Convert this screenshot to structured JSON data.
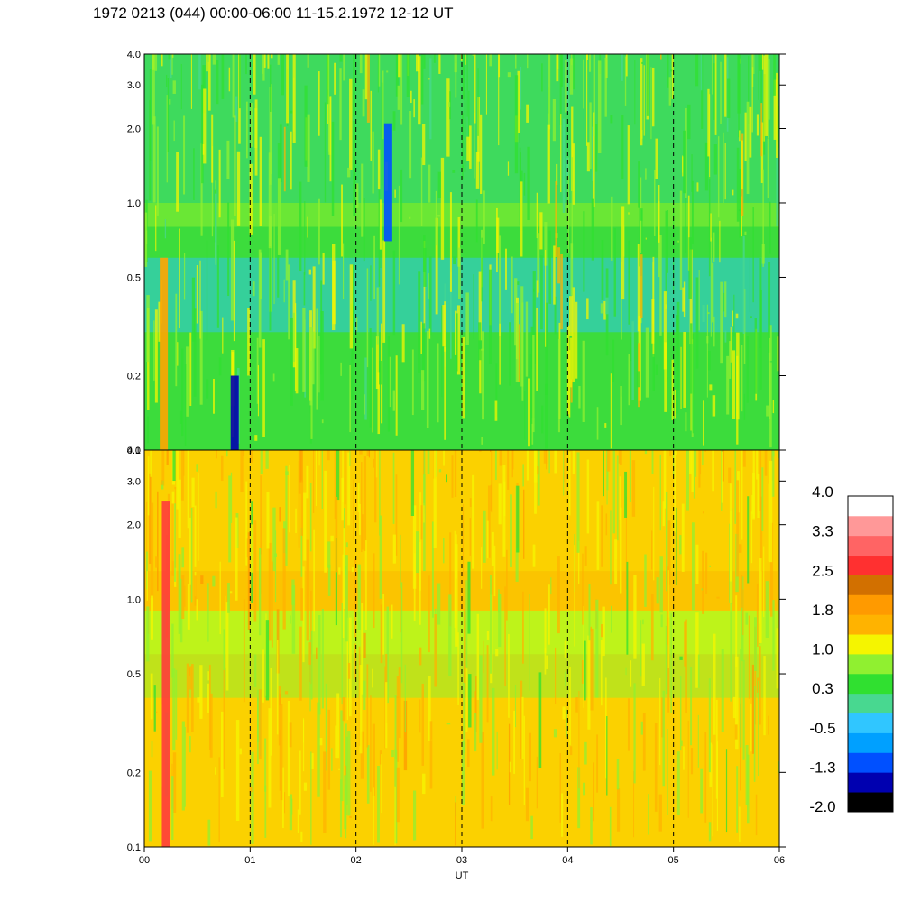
{
  "header": {
    "title": "1972 0213 (044) 00:00-06:00 11-15.2.1972  12-12 UT"
  },
  "chart_data": {
    "type": "heatmap",
    "title": "1972 0213 (044) 00:00-06:00 11-15.2.1972  12-12 UT",
    "xlabel": "UT",
    "x_ticks": [
      "00",
      "01",
      "02",
      "03",
      "04",
      "05",
      "06"
    ],
    "x_range": [
      0,
      6
    ],
    "y_scale": "log",
    "panels": [
      {
        "name": "top",
        "y_range": [
          0.1,
          4.0
        ],
        "y_ticks": [
          {
            "value": 4.0,
            "label": "4.0"
          },
          {
            "value": 3.0,
            "label": "3.0"
          },
          {
            "value": 2.0,
            "label": "2.0"
          },
          {
            "value": 1.0,
            "label": "1.0"
          },
          {
            "value": 0.5,
            "label": "0.5"
          },
          {
            "value": 0.2,
            "label": "0.2"
          },
          {
            "value": 0.1,
            "label": "0.1"
          }
        ],
        "dominant_level": 0.3,
        "background_color": "#3cdc3c",
        "bands": [
          {
            "y_low": 0.1,
            "y_high": 0.8,
            "color": "#3cdc3c"
          },
          {
            "y_low": 0.3,
            "y_high": 0.6,
            "color": "#30c6e8"
          },
          {
            "y_low": 0.8,
            "y_high": 1.0,
            "color": "#90f030"
          },
          {
            "y_low": 1.0,
            "y_high": 4.0,
            "color": "#40d878"
          }
        ],
        "hot_streaks": [
          {
            "x": 0.18,
            "y_low": 0.1,
            "y_high": 0.6,
            "color": "#ffa500"
          },
          {
            "x": 0.85,
            "y_low": 0.1,
            "y_high": 0.2,
            "color": "#0000b0"
          },
          {
            "x": 2.3,
            "y_low": 0.7,
            "y_high": 2.1,
            "color": "#0050ff"
          }
        ]
      },
      {
        "name": "bottom",
        "y_range": [
          0.1,
          4.0
        ],
        "y_ticks": [
          {
            "value": 4.0,
            "label": "4.0"
          },
          {
            "value": 3.0,
            "label": "3.0"
          },
          {
            "value": 2.0,
            "label": "2.0"
          },
          {
            "value": 1.0,
            "label": "1.0"
          },
          {
            "value": 0.5,
            "label": "0.5"
          },
          {
            "value": 0.2,
            "label": "0.2"
          },
          {
            "value": 0.1,
            "label": "0.1"
          }
        ],
        "dominant_level": 1.0,
        "background_color": "#f5f500",
        "bands": [
          {
            "y_low": 0.1,
            "y_high": 0.6,
            "color": "#ffb300"
          },
          {
            "y_low": 0.4,
            "y_high": 0.9,
            "color": "#90f030"
          },
          {
            "y_low": 0.9,
            "y_high": 1.3,
            "color": "#ff9a00"
          },
          {
            "y_low": 1.3,
            "y_high": 4.0,
            "color": "#ffb300"
          }
        ],
        "hot_streaks": [
          {
            "x": 0.2,
            "y_low": 0.1,
            "y_high": 2.5,
            "color": "#ff3b3b"
          }
        ]
      }
    ],
    "colorbar": {
      "levels": [
        {
          "color": "#000000"
        },
        {
          "color": "#0000b0"
        },
        {
          "color": "#0050ff"
        },
        {
          "color": "#00a0ff"
        },
        {
          "color": "#30c6ff"
        },
        {
          "color": "#48d890"
        },
        {
          "color": "#30e030"
        },
        {
          "color": "#90f030"
        },
        {
          "color": "#f5f500"
        },
        {
          "color": "#ffb300"
        },
        {
          "color": "#ff9a00"
        },
        {
          "color": "#d27000"
        },
        {
          "color": "#ff3030"
        },
        {
          "color": "#ff6464"
        },
        {
          "color": "#ff9898"
        },
        {
          "color": "#ffffff"
        }
      ],
      "labels": [
        "4.0",
        "3.3",
        "2.5",
        "1.8",
        "1.0",
        "0.3",
        "-0.5",
        "-1.3",
        "-2.0"
      ]
    }
  }
}
